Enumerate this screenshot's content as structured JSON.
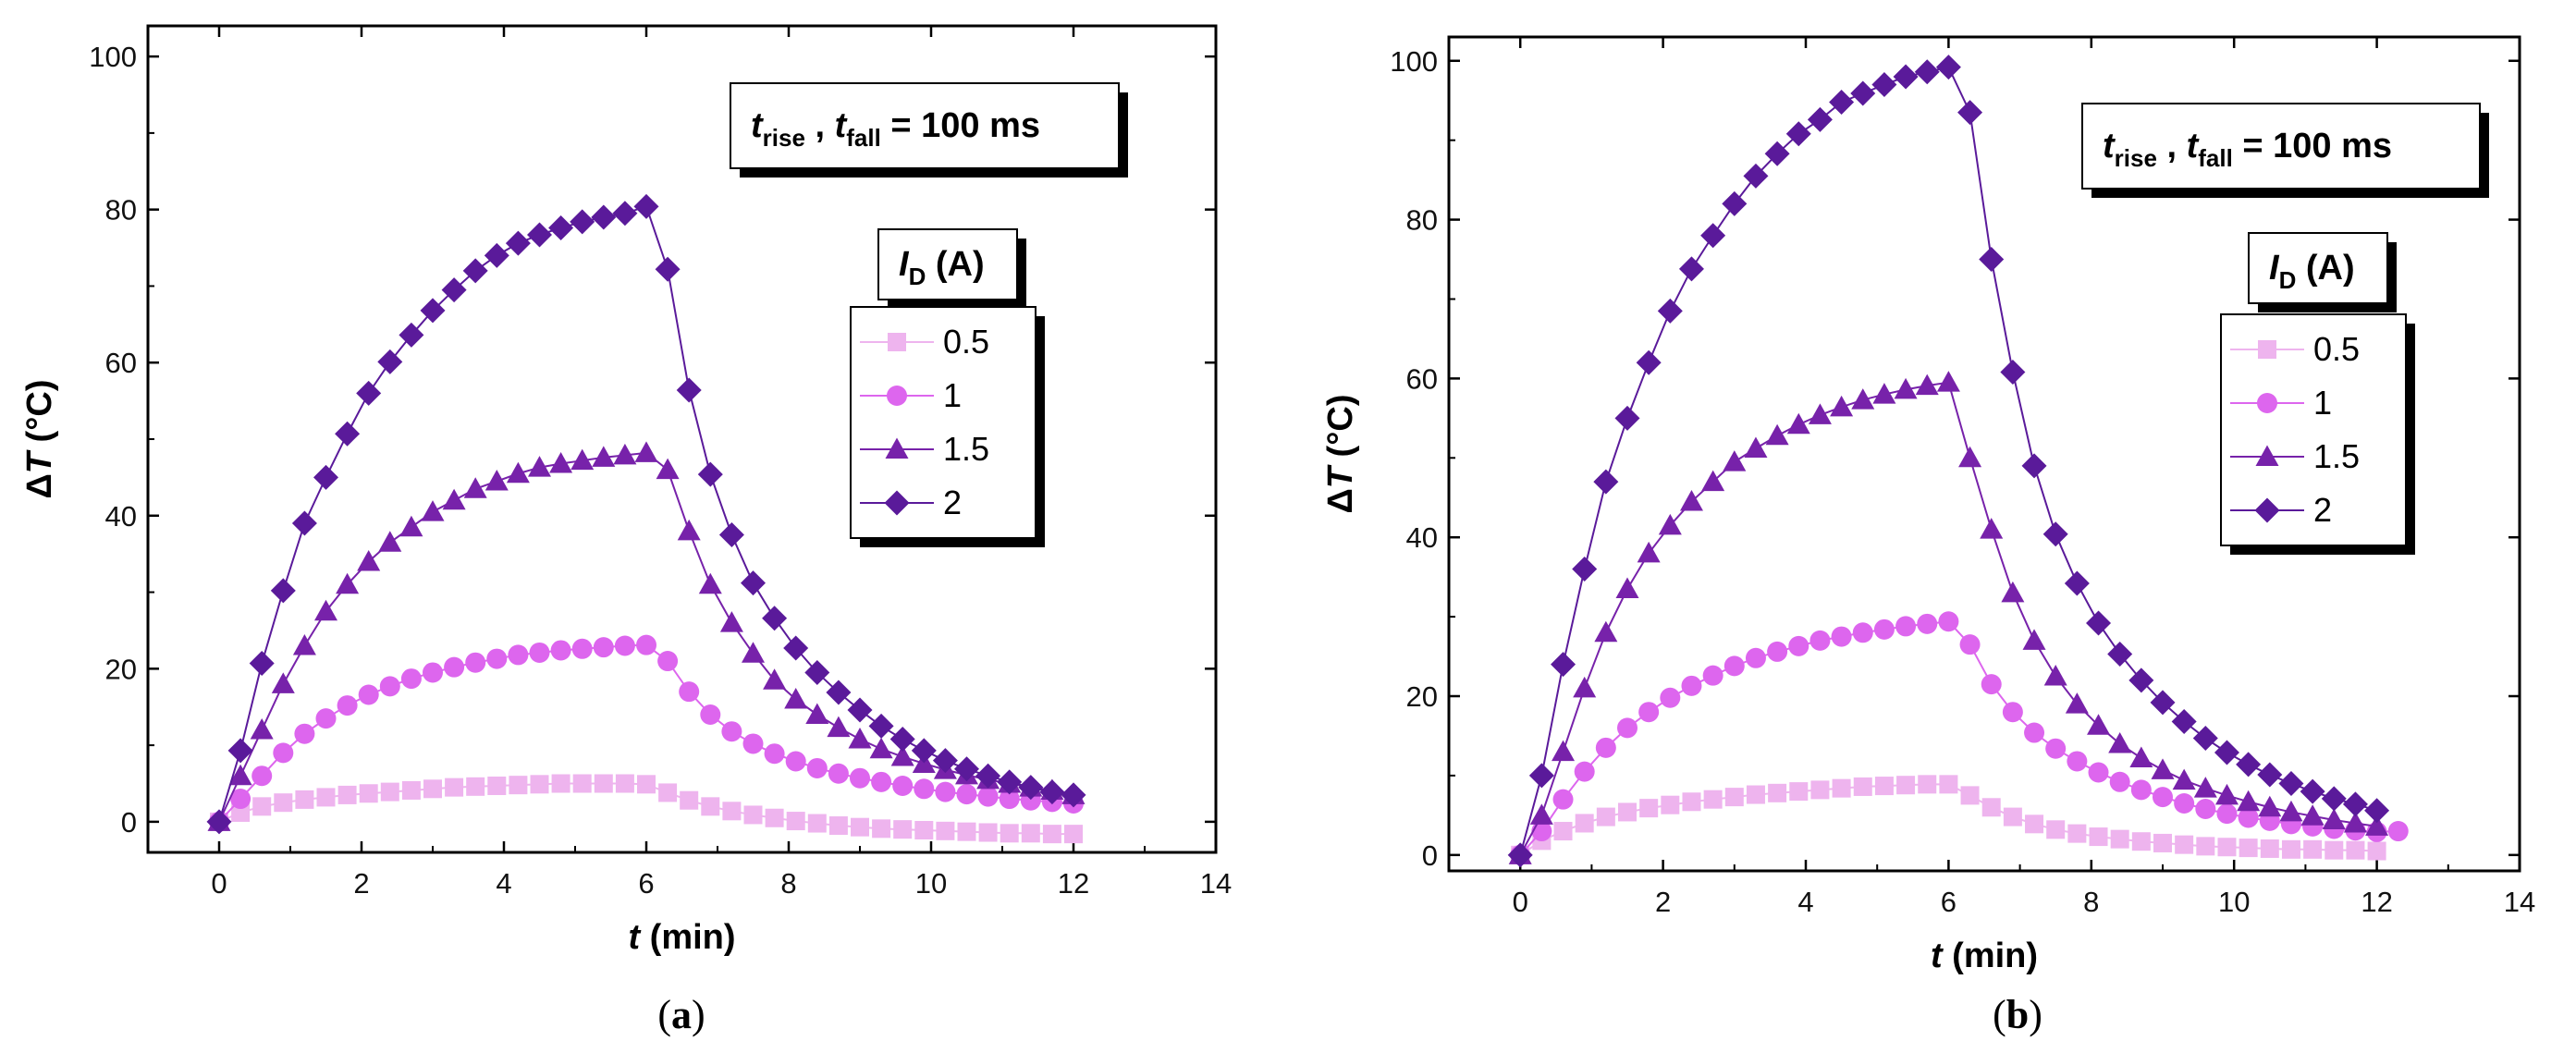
{
  "chart_data": [
    {
      "type": "line",
      "panel_label": "a",
      "xlabel": "t (min)",
      "ylabel": "ΔT (°C)",
      "xlim": [
        -1,
        14
      ],
      "ylim": [
        -4,
        104
      ],
      "xticks": [
        0,
        2,
        4,
        6,
        8,
        10,
        12,
        14
      ],
      "yticks": [
        0,
        20,
        40,
        60,
        80,
        100
      ],
      "annotation": "t_rise , t_fall = 100 ms",
      "legend_title": "I_D (A)",
      "legend_position": "right",
      "series": [
        {
          "name": "0.5",
          "marker": "square",
          "color": "#eeb4ee",
          "x": [
            0,
            0.3,
            0.6,
            0.9,
            1.2,
            1.5,
            1.8,
            2.1,
            2.4,
            2.7,
            3.0,
            3.3,
            3.6,
            3.9,
            4.2,
            4.5,
            4.8,
            5.1,
            5.4,
            5.7,
            6.0,
            6.3,
            6.6,
            6.9,
            7.2,
            7.5,
            7.8,
            8.1,
            8.4,
            8.7,
            9.0,
            9.3,
            9.6,
            9.9,
            10.2,
            10.5,
            10.8,
            11.1,
            11.4,
            11.7,
            12.0
          ],
          "y": [
            0,
            1.2,
            2.0,
            2.5,
            2.9,
            3.2,
            3.5,
            3.7,
            3.9,
            4.1,
            4.3,
            4.5,
            4.6,
            4.7,
            4.8,
            4.9,
            5.0,
            5.0,
            5.0,
            5.0,
            4.9,
            3.8,
            2.8,
            2.0,
            1.4,
            0.9,
            0.5,
            0.1,
            -0.2,
            -0.5,
            -0.7,
            -0.9,
            -1.0,
            -1.1,
            -1.2,
            -1.3,
            -1.4,
            -1.5,
            -1.5,
            -1.6,
            -1.6
          ]
        },
        {
          "name": "1",
          "marker": "circle",
          "color": "#dd66ee",
          "x": [
            0,
            0.3,
            0.6,
            0.9,
            1.2,
            1.5,
            1.8,
            2.1,
            2.4,
            2.7,
            3.0,
            3.3,
            3.6,
            3.9,
            4.2,
            4.5,
            4.8,
            5.1,
            5.4,
            5.7,
            6.0,
            6.3,
            6.6,
            6.9,
            7.2,
            7.5,
            7.8,
            8.1,
            8.4,
            8.7,
            9.0,
            9.3,
            9.6,
            9.9,
            10.2,
            10.5,
            10.8,
            11.1,
            11.4,
            11.7,
            12.0
          ],
          "y": [
            0,
            3,
            6,
            9,
            11.5,
            13.5,
            15.2,
            16.6,
            17.7,
            18.7,
            19.5,
            20.2,
            20.8,
            21.3,
            21.8,
            22.1,
            22.4,
            22.6,
            22.8,
            23.0,
            23.1,
            21,
            17,
            14,
            11.8,
            10.2,
            8.9,
            7.9,
            7.0,
            6.3,
            5.7,
            5.2,
            4.7,
            4.3,
            3.9,
            3.6,
            3.3,
            3.0,
            2.8,
            2.6,
            2.4
          ]
        },
        {
          "name": "1.5",
          "marker": "triangle",
          "color": "#7722aa",
          "x": [
            0,
            0.3,
            0.6,
            0.9,
            1.2,
            1.5,
            1.8,
            2.1,
            2.4,
            2.7,
            3.0,
            3.3,
            3.6,
            3.9,
            4.2,
            4.5,
            4.8,
            5.1,
            5.4,
            5.7,
            6.0,
            6.3,
            6.6,
            6.9,
            7.2,
            7.5,
            7.8,
            8.1,
            8.4,
            8.7,
            9.0,
            9.3,
            9.6,
            9.9,
            10.2,
            10.5,
            10.8,
            11.1,
            11.4,
            11.7,
            12.0
          ],
          "y": [
            0,
            6,
            12,
            18,
            23,
            27.5,
            31,
            34,
            36.5,
            38.5,
            40.5,
            42,
            43.5,
            44.5,
            45.5,
            46.3,
            46.8,
            47.2,
            47.6,
            47.9,
            48.2,
            46,
            38,
            31,
            26,
            22,
            18.5,
            16,
            14,
            12.3,
            10.8,
            9.5,
            8.5,
            7.6,
            6.8,
            6.1,
            5.5,
            5.0,
            4.5,
            4.1,
            3.5
          ]
        },
        {
          "name": "2",
          "marker": "diamond",
          "color": "#5a1a9a",
          "x": [
            0,
            0.3,
            0.6,
            0.9,
            1.2,
            1.5,
            1.8,
            2.1,
            2.4,
            2.7,
            3.0,
            3.3,
            3.6,
            3.9,
            4.2,
            4.5,
            4.8,
            5.1,
            5.4,
            5.7,
            6.0,
            6.3,
            6.6,
            6.9,
            7.2,
            7.5,
            7.8,
            8.1,
            8.4,
            8.7,
            9.0,
            9.3,
            9.6,
            9.9,
            10.2,
            10.5,
            10.8,
            11.1,
            11.4,
            11.7,
            12.0
          ],
          "y": [
            0,
            9.3,
            20.7,
            30.2,
            39,
            45,
            50.7,
            56,
            60.1,
            63.6,
            66.8,
            69.5,
            72,
            74,
            75.6,
            76.7,
            77.6,
            78.4,
            79,
            79.5,
            80.4,
            72.2,
            56.4,
            45.4,
            37.5,
            31.2,
            26.6,
            22.7,
            19.5,
            16.9,
            14.6,
            12.5,
            10.8,
            9.3,
            8.0,
            6.9,
            6.0,
            5.2,
            4.5,
            3.9,
            3.5
          ]
        }
      ]
    },
    {
      "type": "line",
      "panel_label": "b",
      "xlabel": "t (min)",
      "ylabel": "ΔT (°C)",
      "xlim": [
        -1,
        14
      ],
      "ylim": [
        -2,
        103
      ],
      "xticks": [
        0,
        2,
        4,
        6,
        8,
        10,
        12,
        14
      ],
      "yticks": [
        0,
        20,
        40,
        60,
        80,
        100
      ],
      "annotation": "t_rise , t_fall = 100 ms",
      "legend_title": "I_D (A)",
      "legend_position": "right",
      "series": [
        {
          "name": "0.5",
          "marker": "square",
          "color": "#eeb4ee",
          "x": [
            0,
            0.3,
            0.6,
            0.9,
            1.2,
            1.5,
            1.8,
            2.1,
            2.4,
            2.7,
            3.0,
            3.3,
            3.6,
            3.9,
            4.2,
            4.5,
            4.8,
            5.1,
            5.4,
            5.7,
            6.0,
            6.3,
            6.6,
            6.9,
            7.2,
            7.5,
            7.8,
            8.1,
            8.4,
            8.7,
            9.0,
            9.3,
            9.6,
            9.9,
            10.2,
            10.5,
            10.8,
            11.1,
            11.4,
            11.7,
            12.0
          ],
          "y": [
            0,
            1.8,
            3.0,
            4.0,
            4.8,
            5.4,
            5.9,
            6.3,
            6.7,
            7.0,
            7.3,
            7.6,
            7.8,
            8.0,
            8.2,
            8.4,
            8.6,
            8.7,
            8.8,
            8.9,
            8.9,
            7.5,
            6.0,
            4.8,
            3.9,
            3.2,
            2.7,
            2.3,
            2.0,
            1.7,
            1.5,
            1.3,
            1.1,
            1.0,
            0.9,
            0.8,
            0.7,
            0.7,
            0.6,
            0.6,
            0.5
          ]
        },
        {
          "name": "1",
          "marker": "circle",
          "color": "#dd66ee",
          "x": [
            0,
            0.3,
            0.6,
            0.9,
            1.2,
            1.5,
            1.8,
            2.1,
            2.4,
            2.7,
            3.0,
            3.3,
            3.6,
            3.9,
            4.2,
            4.5,
            4.8,
            5.1,
            5.4,
            5.7,
            6.0,
            6.3,
            6.6,
            6.9,
            7.2,
            7.5,
            7.8,
            8.1,
            8.4,
            8.7,
            9.0,
            9.3,
            9.6,
            9.9,
            10.2,
            10.5,
            10.8,
            11.1,
            11.4,
            11.7,
            12.0,
            12.3
          ],
          "y": [
            0,
            3,
            7,
            10.5,
            13.5,
            16,
            18,
            19.8,
            21.3,
            22.6,
            23.8,
            24.8,
            25.6,
            26.3,
            27,
            27.5,
            28,
            28.4,
            28.8,
            29.1,
            29.4,
            26.5,
            21.5,
            18,
            15.4,
            13.4,
            11.8,
            10.4,
            9.2,
            8.2,
            7.3,
            6.5,
            5.8,
            5.2,
            4.7,
            4.3,
            3.9,
            3.6,
            3.3,
            3.1,
            2.9,
            3.0
          ]
        },
        {
          "name": "1.5",
          "marker": "triangle",
          "color": "#7722aa",
          "x": [
            0,
            0.3,
            0.6,
            0.9,
            1.2,
            1.5,
            1.8,
            2.1,
            2.4,
            2.7,
            3.0,
            3.3,
            3.6,
            3.9,
            4.2,
            4.5,
            4.8,
            5.1,
            5.4,
            5.7,
            6.0,
            6.3,
            6.6,
            6.9,
            7.2,
            7.5,
            7.8,
            8.1,
            8.4,
            8.7,
            9.0,
            9.3,
            9.6,
            9.9,
            10.2,
            10.5,
            10.8,
            11.1,
            11.4,
            11.7,
            12.0
          ],
          "y": [
            0,
            5,
            13,
            21,
            28,
            33.5,
            38,
            41.5,
            44.5,
            47,
            49.5,
            51.2,
            52.8,
            54.2,
            55.4,
            56.4,
            57.3,
            58,
            58.6,
            59.1,
            59.5,
            50,
            41,
            33,
            27,
            22.5,
            19,
            16.3,
            14,
            12.2,
            10.7,
            9.4,
            8.4,
            7.5,
            6.7,
            6.0,
            5.4,
            4.9,
            4.4,
            4.0,
            3.6
          ]
        },
        {
          "name": "2",
          "marker": "diamond",
          "color": "#5a1a9a",
          "x": [
            0,
            0.3,
            0.6,
            0.9,
            1.2,
            1.5,
            1.8,
            2.1,
            2.4,
            2.7,
            3.0,
            3.3,
            3.6,
            3.9,
            4.2,
            4.5,
            4.8,
            5.1,
            5.4,
            5.7,
            6.0,
            6.3,
            6.6,
            6.9,
            7.2,
            7.5,
            7.8,
            8.1,
            8.4,
            8.7,
            9.0,
            9.3,
            9.6,
            9.9,
            10.2,
            10.5,
            10.8,
            11.1,
            11.4,
            11.7,
            12.0
          ],
          "y": [
            0,
            10,
            24,
            36,
            47,
            55,
            62,
            68.5,
            73.8,
            78,
            82,
            85.5,
            88.3,
            90.8,
            92.6,
            94.8,
            95.9,
            97,
            98,
            98.6,
            99.2,
            93.5,
            75,
            60.8,
            49,
            40.4,
            34.2,
            29.2,
            25.3,
            22,
            19.2,
            16.8,
            14.7,
            12.9,
            11.4,
            10.1,
            9.0,
            8.0,
            7.1,
            6.4,
            5.6
          ]
        }
      ]
    }
  ]
}
